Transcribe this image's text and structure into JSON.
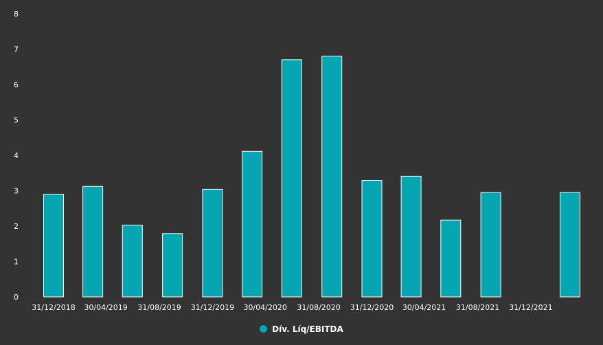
{
  "chart_data": {
    "type": "bar",
    "title": "",
    "xlabel": "",
    "ylabel": "",
    "categories": [
      "31/12/2018",
      "30/04/2019",
      "31/08/2019",
      "31/12/2019",
      "30/04/2020",
      "31/08/2020",
      "31/12/2020",
      "30/04/2021",
      "31/08/2021",
      "31/12/2021"
    ],
    "x": [
      "31/12/2018",
      "31/03/2019",
      "30/06/2019",
      "30/09/2019",
      "31/12/2019",
      "31/03/2020",
      "30/06/2020",
      "30/09/2020",
      "31/12/2020",
      "31/03/2021",
      "30/06/2021",
      "30/09/2021",
      "31/03/2022"
    ],
    "series": [
      {
        "name": "Dív. Líq/EBITDA",
        "values": [
          2.9,
          3.12,
          2.03,
          1.79,
          3.04,
          4.11,
          6.7,
          6.8,
          3.29,
          3.41,
          2.17,
          2.95,
          2.95
        ]
      }
    ],
    "ylim": [
      0,
      8
    ],
    "yticks": [
      0,
      1,
      2,
      3,
      4,
      5,
      6,
      7,
      8
    ],
    "grid": false,
    "legend_position": "bottom-center",
    "bar_color": "#05A6B2",
    "bar_edge_color": "#ffffff",
    "background": "#333333"
  },
  "legend": {
    "label": "Dív. Líq/EBITDA",
    "color": "#05A6B2"
  }
}
